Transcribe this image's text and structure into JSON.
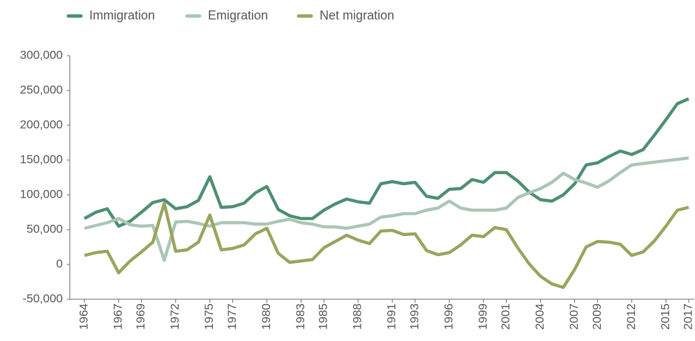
{
  "chart_data": {
    "type": "line",
    "x": [
      1964,
      1965,
      1966,
      1967,
      1968,
      1969,
      1970,
      1971,
      1972,
      1973,
      1974,
      1975,
      1976,
      1977,
      1978,
      1979,
      1980,
      1981,
      1982,
      1983,
      1984,
      1985,
      1986,
      1987,
      1988,
      1989,
      1990,
      1991,
      1992,
      1993,
      1994,
      1995,
      1996,
      1997,
      1998,
      1999,
      2000,
      2001,
      2002,
      2003,
      2004,
      2005,
      2006,
      2007,
      2008,
      2009,
      2010,
      2011,
      2012,
      2013,
      2014,
      2015,
      2016,
      2017
    ],
    "series": [
      {
        "name": "Immigration",
        "color": "#4e8f71",
        "values": [
          66000,
          75000,
          80000,
          55000,
          62000,
          75000,
          89000,
          93000,
          80000,
          83000,
          92000,
          126000,
          82000,
          83000,
          88000,
          103000,
          112000,
          79000,
          70000,
          66000,
          66000,
          78000,
          87000,
          94000,
          90000,
          88000,
          116000,
          119000,
          116000,
          118000,
          98000,
          95000,
          108000,
          109000,
          122000,
          118000,
          132000,
          132000,
          120000,
          104000,
          93000,
          91000,
          100000,
          116000,
          143000,
          146000,
          155000,
          163000,
          158000,
          165000,
          186000,
          208000,
          231000,
          238000
        ]
      },
      {
        "name": "Emigration",
        "color": "#a9c6b6",
        "values": [
          52000,
          56000,
          60000,
          66000,
          57000,
          55000,
          56000,
          6000,
          61000,
          62000,
          59000,
          55000,
          60000,
          60000,
          60000,
          58000,
          58000,
          62000,
          65000,
          60000,
          58000,
          54000,
          54000,
          52000,
          55000,
          58000,
          68000,
          70000,
          73000,
          73000,
          78000,
          81000,
          91000,
          81000,
          78000,
          78000,
          78000,
          81000,
          96000,
          103000,
          109000,
          118000,
          131000,
          122000,
          117000,
          111000,
          120000,
          132000,
          143000,
          145000,
          147000,
          149000,
          151000,
          153000
        ]
      },
      {
        "name": "Net migration",
        "color": "#98a55d",
        "values": [
          13000,
          17000,
          19000,
          -12000,
          5000,
          18000,
          32000,
          88000,
          19000,
          21000,
          32000,
          71000,
          21000,
          23000,
          28000,
          44000,
          52000,
          16000,
          3000,
          5000,
          7000,
          24000,
          33000,
          42000,
          35000,
          30000,
          48000,
          49000,
          43000,
          44000,
          20000,
          14000,
          17000,
          28000,
          42000,
          40000,
          53000,
          50000,
          24000,
          1000,
          -17000,
          -28000,
          -33000,
          -7000,
          25000,
          33000,
          32000,
          29000,
          13000,
          18000,
          34000,
          55000,
          78000,
          82000
        ]
      }
    ],
    "xlim": [
      1964,
      2017
    ],
    "xticks": [
      1964,
      1967,
      1969,
      1972,
      1975,
      1977,
      1980,
      1983,
      1985,
      1988,
      1991,
      1993,
      1996,
      1999,
      2001,
      2004,
      2007,
      2009,
      2012,
      2015,
      2017
    ],
    "ylim": [
      -50000,
      300000
    ],
    "yticks": [
      {
        "value": -50000,
        "label": "-50,000"
      },
      0,
      {
        "value": 50000,
        "label": "50,000"
      },
      {
        "value": 100000,
        "label": "100,000"
      },
      {
        "value": 150000,
        "label": "150,000"
      },
      {
        "value": 200000,
        "label": "200,000"
      },
      {
        "value": 250000,
        "label": "250,000"
      },
      {
        "value": 300000,
        "label": "300,000"
      }
    ],
    "legend": "top-left"
  }
}
